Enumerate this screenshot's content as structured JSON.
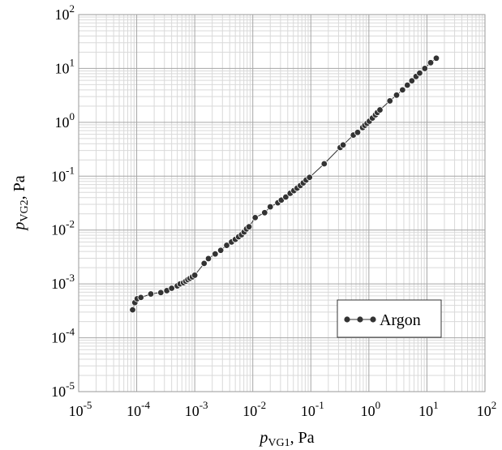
{
  "chart_data": {
    "type": "scatter",
    "xscale": "log",
    "yscale": "log",
    "xlim": [
      1e-05,
      100
    ],
    "ylim": [
      1e-05,
      100
    ],
    "grid": true,
    "legend": "bottom-right",
    "x_ticks": [
      {
        "base": "10",
        "exp": "-5",
        "value": 1e-05
      },
      {
        "base": "10",
        "exp": "-4",
        "value": 0.0001
      },
      {
        "base": "10",
        "exp": "-3",
        "value": 0.001
      },
      {
        "base": "10",
        "exp": "-2",
        "value": 0.01
      },
      {
        "base": "10",
        "exp": "-1",
        "value": 0.1
      },
      {
        "base": "10",
        "exp": "0",
        "value": 1
      },
      {
        "base": "10",
        "exp": "1",
        "value": 10
      },
      {
        "base": "10",
        "exp": "2",
        "value": 100
      }
    ],
    "y_ticks": [
      {
        "base": "10",
        "exp": "-5",
        "value": 1e-05
      },
      {
        "base": "10",
        "exp": "-4",
        "value": 0.0001
      },
      {
        "base": "10",
        "exp": "-3",
        "value": 0.001
      },
      {
        "base": "10",
        "exp": "-2",
        "value": 0.01
      },
      {
        "base": "10",
        "exp": "-1",
        "value": 0.1
      },
      {
        "base": "10",
        "exp": "0",
        "value": 1
      },
      {
        "base": "10",
        "exp": "1",
        "value": 10
      },
      {
        "base": "10",
        "exp": "2",
        "value": 100
      }
    ],
    "xlabel": {
      "main": "p",
      "sub": "VG1",
      "suffix": ", Pa"
    },
    "ylabel": {
      "main": "p",
      "sub": "VG2",
      "suffix": ", Pa"
    },
    "series": [
      {
        "name": "Argon",
        "color": "#333333",
        "x": [
          8.5e-05,
          9.3e-05,
          0.000102,
          0.000118,
          0.000175,
          0.00026,
          0.00033,
          0.0004,
          0.0005,
          0.00056,
          0.00064,
          0.0007,
          0.00076,
          0.00083,
          0.00091,
          0.001,
          0.00145,
          0.00172,
          0.00225,
          0.0028,
          0.00355,
          0.0043,
          0.005,
          0.0057,
          0.0064,
          0.0071,
          0.0078,
          0.0086,
          0.011,
          0.016,
          0.02,
          0.027,
          0.031,
          0.037,
          0.044,
          0.051,
          0.058,
          0.066,
          0.074,
          0.083,
          0.095,
          0.17,
          0.32,
          0.36,
          0.54,
          0.64,
          0.78,
          0.85,
          0.93,
          1.02,
          1.15,
          1.3,
          1.4,
          1.55,
          2.3,
          3.0,
          3.8,
          4.6,
          5.5,
          6.5,
          7.5,
          9.2,
          11.6,
          14.5
        ],
        "y": [
          0.00033,
          0.00045,
          0.00053,
          0.00056,
          0.00065,
          0.00069,
          0.00075,
          0.00083,
          0.00092,
          0.001,
          0.00105,
          0.00112,
          0.0012,
          0.00127,
          0.00135,
          0.00145,
          0.0024,
          0.00295,
          0.0036,
          0.0042,
          0.0052,
          0.006,
          0.0067,
          0.0075,
          0.0082,
          0.0092,
          0.0105,
          0.0115,
          0.017,
          0.021,
          0.027,
          0.032,
          0.036,
          0.041,
          0.048,
          0.054,
          0.06,
          0.067,
          0.075,
          0.085,
          0.095,
          0.17,
          0.34,
          0.38,
          0.58,
          0.65,
          0.8,
          0.88,
          0.96,
          1.05,
          1.2,
          1.38,
          1.52,
          1.7,
          2.5,
          3.2,
          4.0,
          4.9,
          5.9,
          7.1,
          8.2,
          10.0,
          12.8,
          15.5
        ]
      }
    ]
  }
}
